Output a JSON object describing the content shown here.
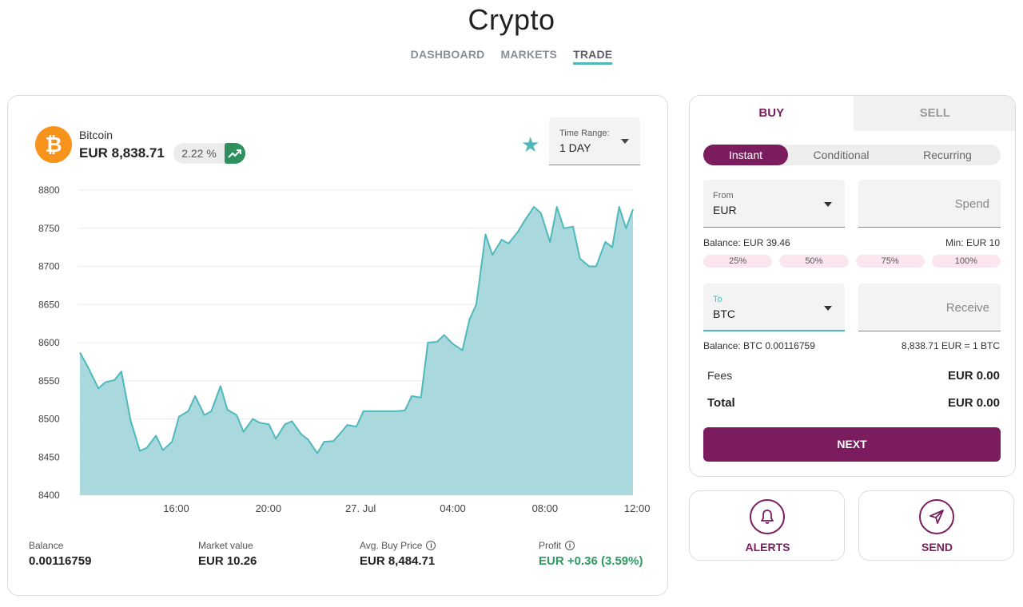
{
  "app": {
    "title": "Crypto"
  },
  "nav": [
    {
      "label": "DASHBOARD",
      "active": false
    },
    {
      "label": "MARKETS",
      "active": false
    },
    {
      "label": "TRADE",
      "active": true
    }
  ],
  "coin": {
    "name": "Bitcoin",
    "symbol_icon": "bitcoin-icon",
    "price": "EUR 8,838.71",
    "change": "2.22 %",
    "trend_icon": "trending-up-icon"
  },
  "time_range": {
    "label": "Time Range:",
    "value": "1 DAY"
  },
  "chart_data": {
    "type": "area",
    "y_ticks": [
      "8800",
      "8750",
      "8700",
      "8650",
      "8600",
      "8550",
      "8500",
      "8450",
      "8400"
    ],
    "ylim": [
      8400,
      8800
    ],
    "x_ticks": [
      {
        "label": "16:00",
        "t": 4.7
      },
      {
        "label": "20:00",
        "t": 8.7
      },
      {
        "label": "27. Jul",
        "t": 12.7
      },
      {
        "label": "04:00",
        "t": 16.7
      },
      {
        "label": "08:00",
        "t": 20.7
      },
      {
        "label": "12:00",
        "t": 24.7
      }
    ],
    "xlim": [
      0,
      24.0
    ],
    "series": [
      {
        "values": [
          [
            0.0,
            8587
          ],
          [
            0.4,
            8565
          ],
          [
            0.8,
            8540
          ],
          [
            1.1,
            8548
          ],
          [
            1.5,
            8551
          ],
          [
            1.8,
            8562
          ],
          [
            2.2,
            8498
          ],
          [
            2.6,
            8458
          ],
          [
            2.9,
            8462
          ],
          [
            3.3,
            8478
          ],
          [
            3.6,
            8459
          ],
          [
            4.0,
            8470
          ],
          [
            4.3,
            8503
          ],
          [
            4.7,
            8510
          ],
          [
            5.0,
            8530
          ],
          [
            5.4,
            8505
          ],
          [
            5.7,
            8510
          ],
          [
            6.1,
            8543
          ],
          [
            6.4,
            8512
          ],
          [
            6.8,
            8505
          ],
          [
            7.1,
            8483
          ],
          [
            7.5,
            8500
          ],
          [
            7.8,
            8495
          ],
          [
            8.2,
            8493
          ],
          [
            8.5,
            8474
          ],
          [
            8.9,
            8493
          ],
          [
            9.2,
            8497
          ],
          [
            9.6,
            8480
          ],
          [
            9.9,
            8473
          ],
          [
            10.3,
            8455
          ],
          [
            10.6,
            8470
          ],
          [
            11.0,
            8471
          ],
          [
            11.3,
            8481
          ],
          [
            11.6,
            8492
          ],
          [
            12.0,
            8490
          ],
          [
            12.3,
            8510
          ],
          [
            12.7,
            8510
          ],
          [
            13.0,
            8510
          ],
          [
            13.4,
            8510
          ],
          [
            13.7,
            8510
          ],
          [
            14.1,
            8511
          ],
          [
            14.4,
            8530
          ],
          [
            14.8,
            8528
          ],
          [
            15.1,
            8600
          ],
          [
            15.5,
            8601
          ],
          [
            15.8,
            8610
          ],
          [
            16.2,
            8598
          ],
          [
            16.6,
            8590
          ],
          [
            16.9,
            8630
          ],
          [
            17.2,
            8650
          ],
          [
            17.6,
            8742
          ],
          [
            17.9,
            8715
          ],
          [
            18.3,
            8735
          ],
          [
            18.6,
            8730
          ],
          [
            19.0,
            8745
          ],
          [
            19.3,
            8760
          ],
          [
            19.7,
            8778
          ],
          [
            20.0,
            8770
          ],
          [
            20.4,
            8732
          ],
          [
            20.7,
            8778
          ],
          [
            21.0,
            8750
          ],
          [
            21.4,
            8752
          ],
          [
            21.7,
            8710
          ],
          [
            22.1,
            8700
          ],
          [
            22.4,
            8700
          ],
          [
            22.8,
            8732
          ],
          [
            23.1,
            8725
          ],
          [
            23.4,
            8778
          ],
          [
            23.7,
            8750
          ],
          [
            24.0,
            8775
          ]
        ]
      }
    ],
    "fill_color": "#a9d9dc",
    "line_color": "#4fb8bd",
    "grid": true
  },
  "stats": [
    {
      "label": "Balance",
      "value": "0.00116759",
      "info": false,
      "color": "default"
    },
    {
      "label": "Market value",
      "value": "EUR 10.26",
      "info": false,
      "color": "default"
    },
    {
      "label": "Avg. Buy Price",
      "value": "EUR 8,484.71",
      "info": true,
      "color": "default"
    },
    {
      "label": "Profit",
      "value": "EUR +0.36 (3.59%)",
      "info": true,
      "color": "green"
    }
  ],
  "trade": {
    "tabs": [
      "BUY",
      "SELL"
    ],
    "modes": [
      "Instant",
      "Conditional",
      "Recurring"
    ],
    "from": {
      "label": "From",
      "value": "EUR"
    },
    "spend_placeholder": "Spend",
    "balance_from": "Balance: EUR 39.46",
    "min": "Min: EUR 10",
    "percentages": [
      "25%",
      "50%",
      "75%",
      "100%"
    ],
    "to": {
      "label": "To",
      "value": "BTC"
    },
    "receive_placeholder": "Receive",
    "balance_to": "Balance:  BTC 0.00116759",
    "rate": "8,838.71 EUR = 1 BTC",
    "fees_label": "Fees",
    "fees_value": "EUR 0.00",
    "total_label": "Total",
    "total_value": "EUR 0.00",
    "next_label": "NEXT"
  },
  "actions": [
    {
      "label": "ALERTS",
      "icon": "bell-icon"
    },
    {
      "label": "SEND",
      "icon": "send-icon"
    }
  ],
  "colors": {
    "accent": "#7a1c5e",
    "teal": "#4fb8bd",
    "positive": "#2e9a62",
    "bitcoin": "#f7931a"
  }
}
